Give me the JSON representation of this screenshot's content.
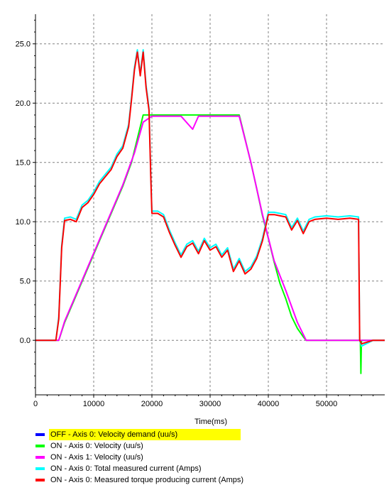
{
  "chart_data": {
    "type": "line",
    "xlabel": "Time(ms)",
    "ylabel": "",
    "xlim": [
      0,
      60000
    ],
    "ylim": [
      -4.6,
      27.5
    ],
    "xticks": [
      0,
      10000,
      20000,
      30000,
      40000,
      50000
    ],
    "xtick_labels": [
      "0",
      "10000",
      "20000",
      "30000",
      "40000",
      "50000"
    ],
    "yticks": [
      0.0,
      5.0,
      10.0,
      15.0,
      20.0,
      25.0
    ],
    "ytick_labels": [
      "0.0",
      "5.0",
      "10.0",
      "15.0",
      "20.0",
      "25.0"
    ],
    "grid": true,
    "legend_position": "bottom",
    "series": [
      {
        "name": "OFF - Axis 0: Velocity demand (uu/s)",
        "color": "#0000ff",
        "visible": false,
        "highlighted": true,
        "x": [],
        "y": []
      },
      {
        "name": "ON  - Axis 0: Velocity (uu/s)",
        "color": "#00ff00",
        "visible": true,
        "x": [
          0,
          4000,
          5000,
          7000,
          9000,
          11000,
          13000,
          15000,
          16500,
          17500,
          18500,
          20000,
          22000,
          25000,
          28000,
          31000,
          34000,
          35000,
          36000,
          37000,
          38000,
          39000,
          40000,
          41000,
          42000,
          43000,
          44000,
          45000,
          46000,
          46500,
          50000,
          55000,
          55800,
          55900,
          56000,
          58000,
          60000
        ],
        "y": [
          0.0,
          0.0,
          1.5,
          3.8,
          6.1,
          8.4,
          10.7,
          13.0,
          15.0,
          17.0,
          19.0,
          19.0,
          19.0,
          19.0,
          19.0,
          19.0,
          19.0,
          19.0,
          17.0,
          15.0,
          12.8,
          10.5,
          8.6,
          6.6,
          4.8,
          3.5,
          2.0,
          1.0,
          0.3,
          0.0,
          0.0,
          0.0,
          0.0,
          -2.8,
          0.0,
          0.0,
          0.0
        ]
      },
      {
        "name": "ON  - Axis 1: Velocity (uu/s)",
        "color": "#ff00ff",
        "visible": true,
        "x": [
          0,
          4000,
          5000,
          7000,
          9000,
          11000,
          13000,
          15000,
          17000,
          18500,
          20000,
          22000,
          25000,
          27000,
          28000,
          30000,
          34000,
          35000,
          37000,
          39000,
          41000,
          43000,
          45000,
          46500,
          50000,
          55000,
          60000
        ],
        "y": [
          0.0,
          0.0,
          1.6,
          3.9,
          6.2,
          8.5,
          10.8,
          13.1,
          15.8,
          18.4,
          18.9,
          18.9,
          18.9,
          17.8,
          18.9,
          18.9,
          18.9,
          18.9,
          15.0,
          10.6,
          6.7,
          4.2,
          1.5,
          0.0,
          0.0,
          0.0,
          0.0
        ]
      },
      {
        "name": "ON  - Axis 0: Total measured current (Amps)",
        "color": "#00ffff",
        "visible": true,
        "x": [
          0,
          3500,
          4000,
          4500,
          5000,
          6000,
          7000,
          8000,
          9000,
          10000,
          11000,
          12000,
          13000,
          14000,
          15000,
          16000,
          16500,
          17000,
          17500,
          18000,
          18500,
          19000,
          19500,
          19800,
          20000,
          21000,
          22000,
          23000,
          24000,
          25000,
          26000,
          27000,
          28000,
          29000,
          30000,
          31000,
          32000,
          33000,
          34000,
          35000,
          36000,
          37000,
          38000,
          39000,
          40000,
          41000,
          42000,
          43000,
          44000,
          45000,
          46000,
          47000,
          48000,
          50000,
          52000,
          54000,
          55500,
          55700,
          56000,
          58000,
          60000
        ],
        "y": [
          0.0,
          0.0,
          2.0,
          8.0,
          10.3,
          10.4,
          10.2,
          11.4,
          11.8,
          12.5,
          13.4,
          14.0,
          14.6,
          15.7,
          16.4,
          18.2,
          20.5,
          23.0,
          24.5,
          22.5,
          24.5,
          21.5,
          19.6,
          14.0,
          10.9,
          10.9,
          10.6,
          9.3,
          8.2,
          7.2,
          8.1,
          8.4,
          7.5,
          8.6,
          7.8,
          8.1,
          7.2,
          7.8,
          6.0,
          6.9,
          5.8,
          6.2,
          7.1,
          8.6,
          10.8,
          10.8,
          10.7,
          10.6,
          9.5,
          10.3,
          9.2,
          10.2,
          10.4,
          10.5,
          10.4,
          10.5,
          10.4,
          0.0,
          -0.5,
          0.0,
          0.0
        ]
      },
      {
        "name": "ON  - Axis 0: Measured torque producing current (Amps)",
        "color": "#ff0000",
        "visible": true,
        "x": [
          0,
          3500,
          4000,
          4500,
          5000,
          6000,
          7000,
          8000,
          9000,
          10000,
          11000,
          12000,
          13000,
          14000,
          15000,
          16000,
          16500,
          17000,
          17500,
          18000,
          18500,
          19000,
          19500,
          19800,
          20000,
          21000,
          22000,
          23000,
          24000,
          25000,
          26000,
          27000,
          28000,
          29000,
          30000,
          31000,
          32000,
          33000,
          34000,
          35000,
          36000,
          37000,
          38000,
          39000,
          40000,
          41000,
          42000,
          43000,
          44000,
          45000,
          46000,
          47000,
          48000,
          50000,
          52000,
          54000,
          55500,
          55700,
          56000,
          58000,
          60000
        ],
        "y": [
          0.0,
          0.0,
          1.8,
          7.8,
          10.1,
          10.2,
          10.0,
          11.2,
          11.6,
          12.3,
          13.2,
          13.8,
          14.4,
          15.5,
          16.2,
          18.0,
          20.3,
          22.8,
          24.3,
          22.3,
          24.3,
          21.3,
          19.4,
          13.8,
          10.7,
          10.7,
          10.4,
          9.1,
          8.0,
          7.0,
          7.9,
          8.2,
          7.3,
          8.4,
          7.6,
          7.9,
          7.0,
          7.6,
          5.8,
          6.7,
          5.6,
          6.0,
          6.9,
          8.4,
          10.6,
          10.6,
          10.5,
          10.4,
          9.3,
          10.1,
          9.0,
          10.0,
          10.2,
          10.3,
          10.2,
          10.3,
          10.2,
          0.0,
          -0.3,
          0.0,
          0.0
        ]
      }
    ]
  }
}
